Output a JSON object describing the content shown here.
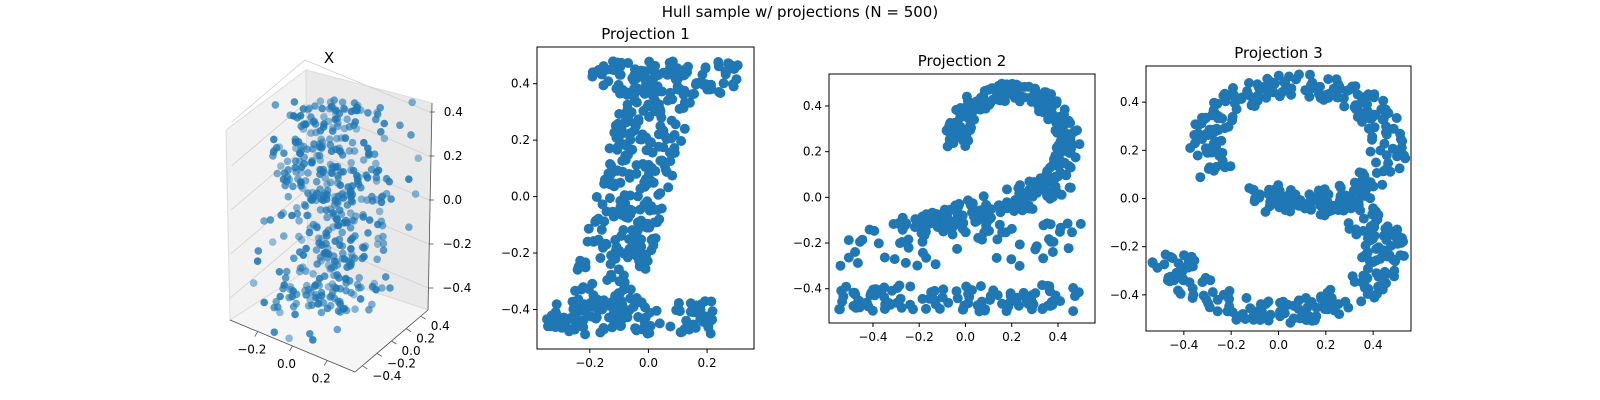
{
  "figure": {
    "suptitle": "Hull sample w/ projections (N = 500)",
    "point_color": "#1f77b4"
  },
  "chart_data": [
    {
      "type": "scatter",
      "projection": "3d",
      "title": "X",
      "xlabel": "",
      "ylabel": "",
      "zlabel": "",
      "xticks": [
        -0.2,
        0.0,
        0.2
      ],
      "yticks": [
        -0.4,
        -0.2,
        0.0,
        0.2,
        0.4
      ],
      "zticks": [
        -0.4,
        -0.2,
        0.0,
        0.2,
        0.4
      ],
      "xlim": [
        -0.36,
        0.36
      ],
      "ylim": [
        -0.5,
        0.5
      ],
      "zlim": [
        -0.5,
        0.5
      ],
      "grid": true,
      "description_points": "500 points forming the digits I, 2, 3 as seen along each axis"
    },
    {
      "type": "scatter",
      "title": "Projection 1",
      "xlabel": "",
      "ylabel": "",
      "xticks": [
        -0.2,
        0.0,
        0.2
      ],
      "yticks": [
        -0.4,
        -0.2,
        0.0,
        0.2,
        0.4
      ],
      "xlim": [
        -0.38,
        0.36
      ],
      "ylim": [
        -0.54,
        0.53
      ],
      "grid": false,
      "shape": "slanted-I",
      "n_points": 500
    },
    {
      "type": "scatter",
      "title": "Projection 2",
      "xlabel": "",
      "ylabel": "",
      "xticks": [
        -0.4,
        -0.2,
        0.0,
        0.2,
        0.4
      ],
      "yticks": [
        -0.4,
        -0.2,
        0.0,
        0.2,
        0.4
      ],
      "xlim": [
        -0.59,
        0.56
      ],
      "ylim": [
        -0.55,
        0.54
      ],
      "grid": false,
      "shape": "digit-2",
      "n_points": 500
    },
    {
      "type": "scatter",
      "title": "Projection 3",
      "xlabel": "",
      "ylabel": "",
      "xticks": [
        -0.4,
        -0.2,
        0.0,
        0.2,
        0.4
      ],
      "yticks": [
        -0.4,
        -0.2,
        0.0,
        0.2,
        0.4
      ],
      "xlim": [
        -0.56,
        0.56
      ],
      "ylim": [
        -0.55,
        0.55
      ],
      "grid": false,
      "shape": "digit-3",
      "n_points": 500
    }
  ]
}
